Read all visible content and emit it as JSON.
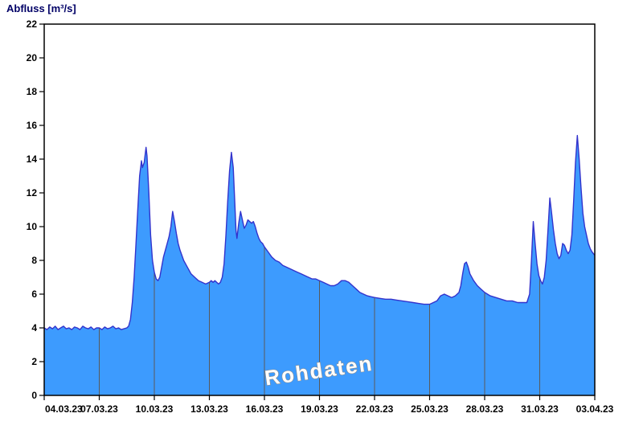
{
  "chart_data": {
    "type": "area",
    "title": "Abfluss [m³/s]",
    "watermark": "Rohdaten",
    "xlabel": "",
    "ylabel": "Abfluss [m³/s]",
    "xlim": [
      0,
      30
    ],
    "ylim": [
      0,
      22
    ],
    "y_ticks": [
      0,
      2,
      4,
      6,
      8,
      10,
      12,
      14,
      16,
      18,
      20,
      22
    ],
    "x_tick_days": [
      0,
      3,
      6,
      9,
      12,
      15,
      18,
      21,
      24,
      27,
      30
    ],
    "x_tick_labels": [
      "04.03.23",
      "07.03.23",
      "10.03.23",
      "13.03.23",
      "16.03.23",
      "19.03.23",
      "22.03.23",
      "25.03.23",
      "28.03.23",
      "31.03.23",
      "03.04.23"
    ],
    "grid": "vertical-only",
    "legend": "none",
    "fill_color": "#3d9bfe",
    "line_color": "#3333cc",
    "grid_color": "#5a5a5a",
    "series": [
      {
        "name": "Abfluss",
        "x": [
          0,
          0.15,
          0.3,
          0.45,
          0.6,
          0.75,
          0.9,
          1.05,
          1.2,
          1.35,
          1.5,
          1.65,
          1.8,
          1.95,
          2.1,
          2.25,
          2.4,
          2.55,
          2.7,
          2.85,
          3,
          3.15,
          3.3,
          3.45,
          3.6,
          3.75,
          3.9,
          4.05,
          4.2,
          4.35,
          4.5,
          4.6,
          4.7,
          4.8,
          4.9,
          5,
          5.1,
          5.2,
          5.3,
          5.35,
          5.45,
          5.55,
          5.6,
          5.7,
          5.8,
          5.9,
          6,
          6.1,
          6.2,
          6.3,
          6.4,
          6.5,
          6.6,
          6.7,
          6.8,
          6.9,
          7,
          7.1,
          7.2,
          7.3,
          7.4,
          7.5,
          7.6,
          7.7,
          7.8,
          7.9,
          8,
          8.2,
          8.4,
          8.6,
          8.8,
          9,
          9.1,
          9.2,
          9.3,
          9.4,
          9.5,
          9.6,
          9.7,
          9.8,
          9.9,
          10,
          10.1,
          10.2,
          10.3,
          10.4,
          10.45,
          10.5,
          10.6,
          10.7,
          10.8,
          10.9,
          11,
          11.1,
          11.2,
          11.3,
          11.4,
          11.5,
          11.6,
          11.7,
          11.8,
          11.9,
          12,
          12.2,
          12.4,
          12.6,
          12.8,
          13,
          13.2,
          13.4,
          13.6,
          13.8,
          14,
          14.2,
          14.4,
          14.6,
          14.8,
          15,
          15.2,
          15.4,
          15.6,
          15.8,
          16,
          16.2,
          16.4,
          16.6,
          16.8,
          17,
          17.2,
          17.4,
          17.6,
          17.8,
          18,
          18.3,
          18.6,
          18.9,
          19.2,
          19.5,
          19.8,
          20.1,
          20.4,
          20.7,
          21,
          21.2,
          21.4,
          21.6,
          21.8,
          22,
          22.2,
          22.4,
          22.6,
          22.7,
          22.8,
          22.9,
          23,
          23.1,
          23.2,
          23.4,
          23.6,
          23.8,
          24,
          24.3,
          24.6,
          24.9,
          25.2,
          25.5,
          25.8,
          26.1,
          26.3,
          26.45,
          26.55,
          26.65,
          26.75,
          26.85,
          26.95,
          27.05,
          27.15,
          27.25,
          27.35,
          27.45,
          27.55,
          27.65,
          27.75,
          27.85,
          27.95,
          28.05,
          28.15,
          28.25,
          28.35,
          28.45,
          28.55,
          28.65,
          28.75,
          28.85,
          28.95,
          29.05,
          29.15,
          29.25,
          29.35,
          29.45,
          29.55,
          29.65,
          29.75,
          29.85,
          30
        ],
        "y": [
          4,
          3.9,
          4.05,
          3.95,
          4.1,
          3.9,
          4,
          4.1,
          3.95,
          4,
          3.9,
          4.05,
          4,
          3.9,
          4.1,
          4,
          3.95,
          4.05,
          3.9,
          4,
          4,
          3.9,
          4.05,
          3.95,
          4,
          4.1,
          3.95,
          4,
          3.9,
          3.95,
          4,
          4.1,
          4.5,
          5.5,
          7,
          9,
          11,
          13,
          13.9,
          13.5,
          13.8,
          14.7,
          14.2,
          12,
          9.5,
          8,
          7.3,
          6.9,
          6.8,
          7,
          7.6,
          8.2,
          8.6,
          9,
          9.4,
          10,
          10.9,
          10.3,
          9.6,
          9,
          8.6,
          8.3,
          8,
          7.8,
          7.6,
          7.4,
          7.2,
          7,
          6.8,
          6.7,
          6.6,
          6.7,
          6.8,
          6.7,
          6.8,
          6.7,
          6.6,
          6.7,
          7,
          7.8,
          9.5,
          11.5,
          13.3,
          14.4,
          13.5,
          11,
          9.8,
          9.3,
          10.2,
          10.9,
          10.4,
          9.9,
          10.1,
          10.4,
          10.3,
          10.2,
          10.3,
          10,
          9.6,
          9.3,
          9.1,
          9,
          8.8,
          8.5,
          8.2,
          8,
          7.9,
          7.7,
          7.6,
          7.5,
          7.4,
          7.3,
          7.2,
          7.1,
          7,
          6.9,
          6.9,
          6.8,
          6.7,
          6.6,
          6.5,
          6.5,
          6.6,
          6.8,
          6.8,
          6.7,
          6.5,
          6.3,
          6.1,
          6,
          5.9,
          5.85,
          5.8,
          5.75,
          5.7,
          5.7,
          5.65,
          5.6,
          5.55,
          5.5,
          5.45,
          5.4,
          5.4,
          5.5,
          5.6,
          5.9,
          6,
          5.9,
          5.8,
          5.9,
          6.1,
          6.5,
          7.2,
          7.8,
          7.9,
          7.6,
          7.2,
          6.8,
          6.5,
          6.3,
          6.1,
          5.9,
          5.8,
          5.7,
          5.6,
          5.6,
          5.5,
          5.5,
          5.5,
          6,
          8,
          10.3,
          9,
          7.8,
          7.1,
          6.8,
          6.6,
          7,
          8,
          9.8,
          11.7,
          10.8,
          9.8,
          9,
          8.4,
          8.1,
          8.3,
          9,
          8.9,
          8.6,
          8.4,
          8.6,
          9.5,
          11.5,
          13.8,
          15.4,
          14,
          12.3,
          10.8,
          10,
          9.5,
          9,
          8.7,
          8.5,
          8.3
        ]
      }
    ]
  }
}
